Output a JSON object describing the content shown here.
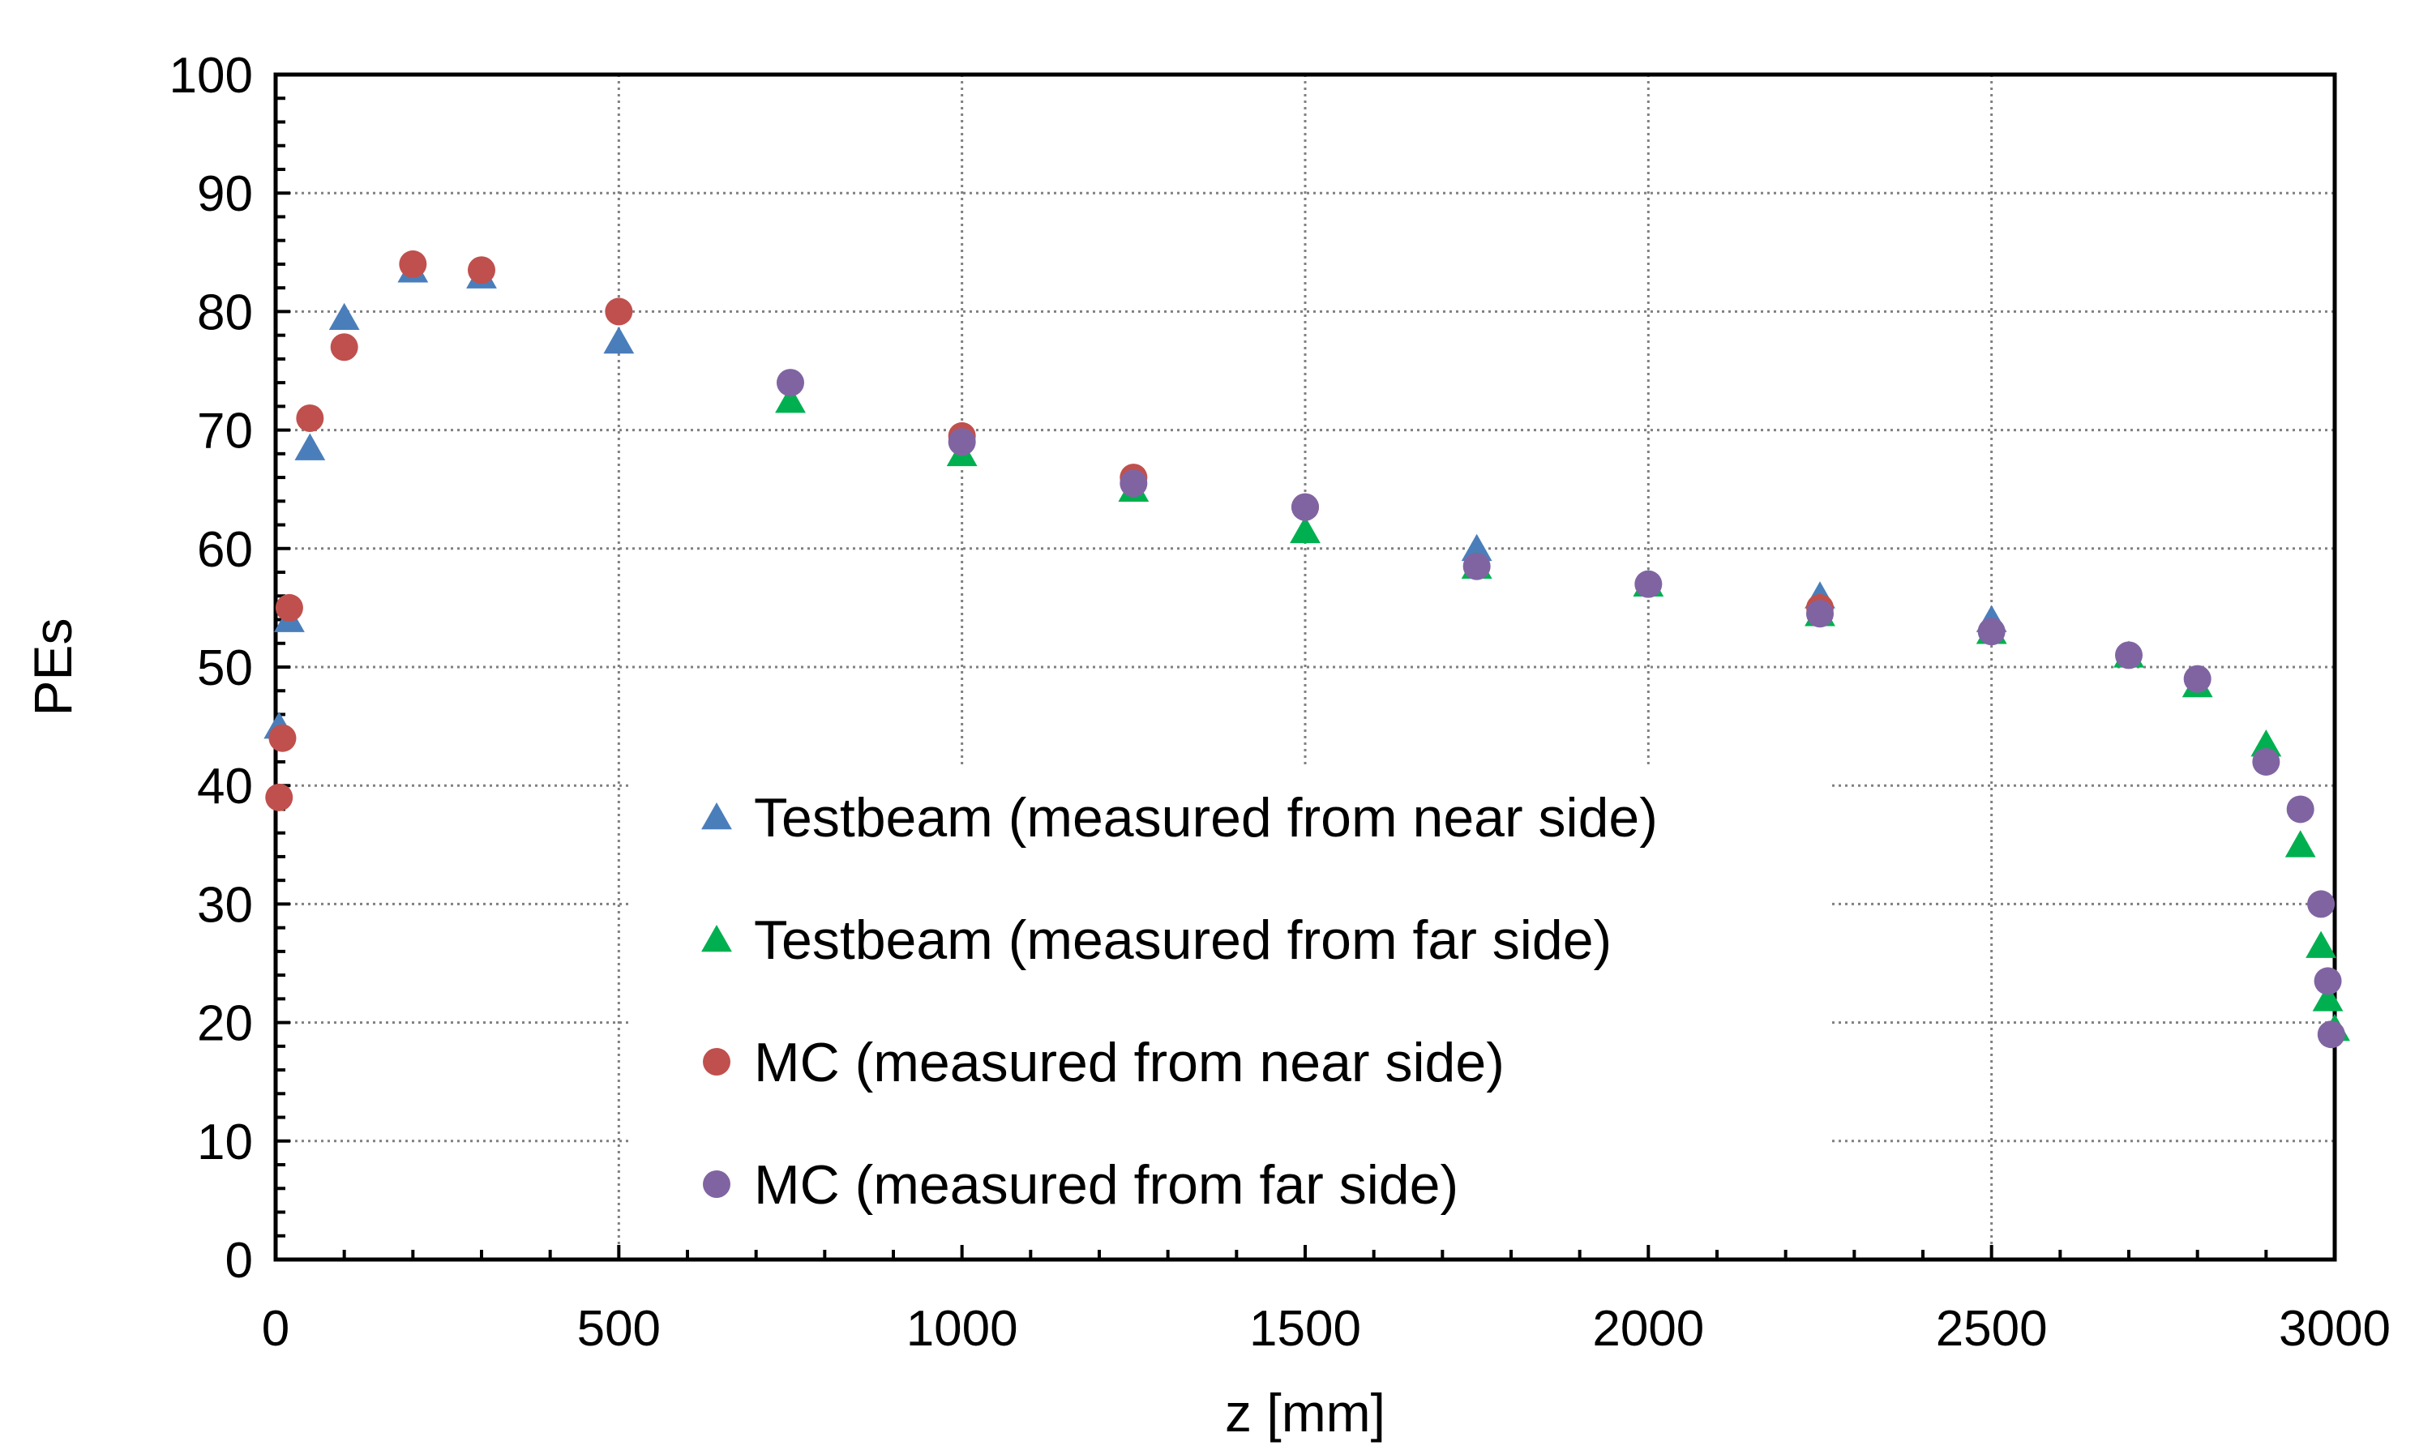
{
  "chart_data": {
    "type": "scatter",
    "title": "",
    "xlabel": "z [mm]",
    "ylabel": "PEs",
    "xlim": [
      0,
      3000
    ],
    "ylim": [
      0,
      100
    ],
    "x_ticks": [
      0,
      500,
      1000,
      1500,
      2000,
      2500,
      3000
    ],
    "y_ticks": [
      0,
      10,
      20,
      30,
      40,
      50,
      60,
      70,
      80,
      90,
      100
    ],
    "x_tick_labels": [
      "0",
      "500",
      "1000",
      "1500",
      "2000",
      "2500",
      "3000"
    ],
    "y_tick_labels": [
      "0",
      "10",
      "20",
      "30",
      "40",
      "50",
      "60",
      "70",
      "80",
      "90",
      "100"
    ],
    "grid": true,
    "legend_position": "lower-center",
    "series": [
      {
        "name": "Testbeam (measured from near side)",
        "marker": "triangle",
        "color": "#4a7ebb",
        "x": [
          5,
          20,
          50,
          100,
          200,
          300,
          500,
          1750,
          2250,
          2500
        ],
        "y": [
          45,
          54,
          68.5,
          79.5,
          83.5,
          83,
          77.5,
          60,
          56,
          54
        ]
      },
      {
        "name": "Testbeam (measured from far side)",
        "marker": "triangle",
        "color": "#00b050",
        "x": [
          750,
          1000,
          1250,
          1500,
          1750,
          2000,
          2250,
          2500,
          2700,
          2800,
          2900,
          2950,
          2980,
          2990,
          3000
        ],
        "y": [
          72.5,
          68,
          65,
          61.5,
          58.5,
          57,
          54.5,
          53,
          51,
          48.5,
          43.5,
          35,
          26.5,
          22,
          19.5
        ]
      },
      {
        "name": "MC (measured from near side)",
        "marker": "circle",
        "color": "#c0504d",
        "x": [
          5,
          10,
          20,
          50,
          100,
          200,
          300,
          500,
          1000,
          1250,
          1500,
          2250
        ],
        "y": [
          39,
          44,
          55,
          71,
          77,
          84,
          83.5,
          80,
          69.5,
          66,
          63.5,
          55
        ]
      },
      {
        "name": "MC (measured from far side)",
        "marker": "circle",
        "color": "#8064a2",
        "x": [
          750,
          1000,
          1250,
          1500,
          1750,
          2000,
          2250,
          2500,
          2700,
          2800,
          2900,
          2950,
          2980,
          2990,
          2995
        ],
        "y": [
          74,
          69,
          65.5,
          63.5,
          58.5,
          57,
          54.5,
          53,
          51,
          49,
          42,
          38,
          30,
          23.5,
          19
        ]
      }
    ]
  }
}
